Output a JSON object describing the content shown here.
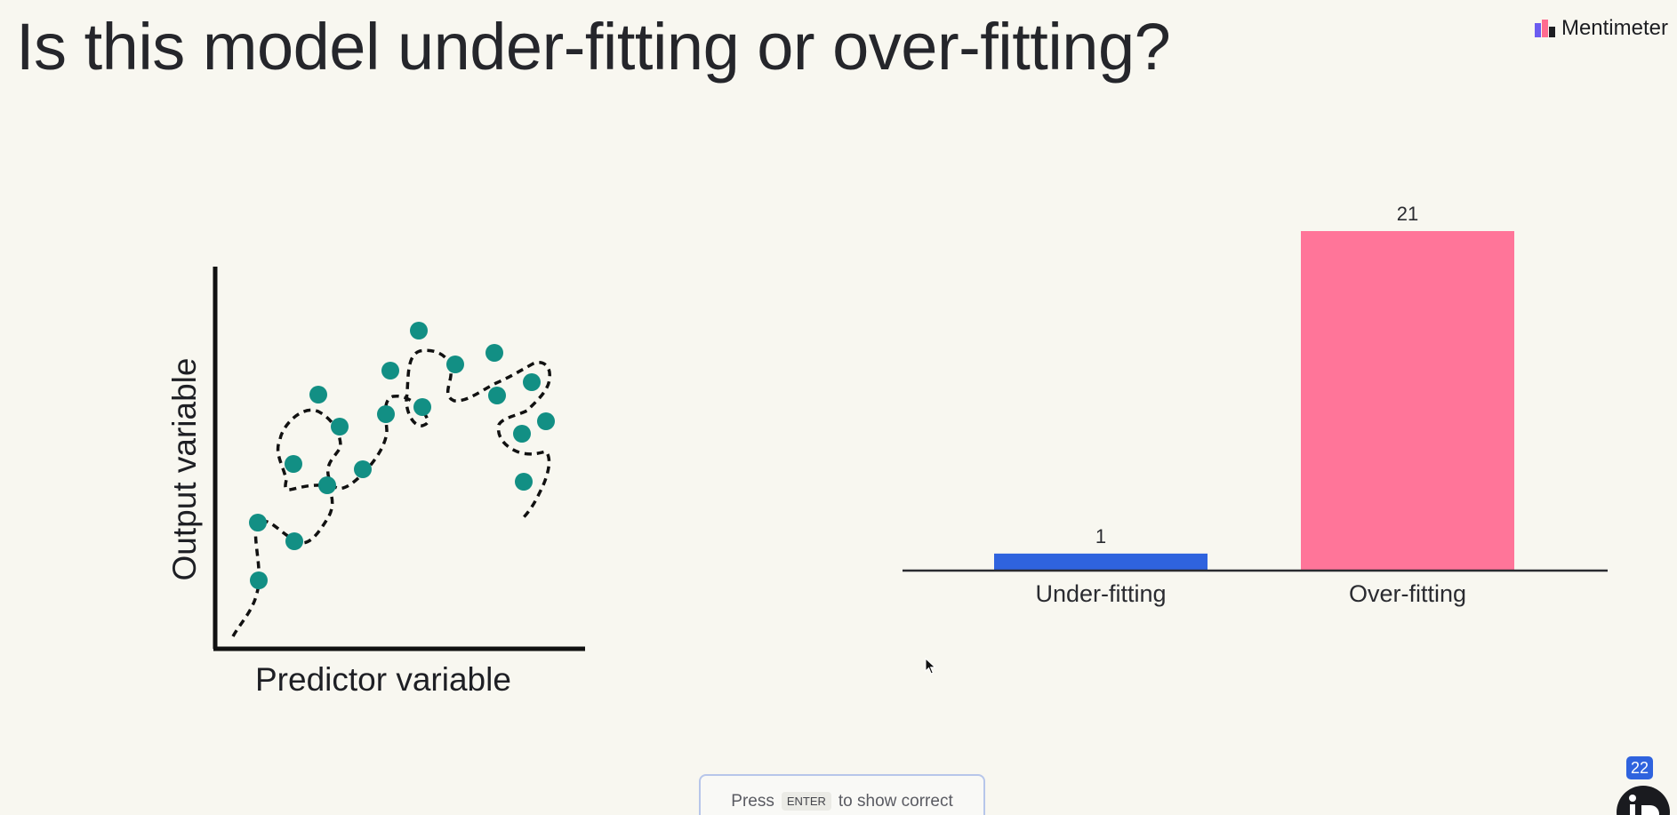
{
  "title": "Is this model under-fitting or over-fitting?",
  "brand": {
    "name": "Mentimeter",
    "icon": "mentimeter-logo"
  },
  "illustration": {
    "xlabel": "Predictor variable",
    "ylabel": "Output variable",
    "point_color": "#128f84"
  },
  "chart_data": {
    "type": "bar",
    "categories": [
      "Under-fitting",
      "Over-fitting"
    ],
    "values": [
      1,
      21
    ],
    "colors": [
      "#2f63de",
      "#ff7599"
    ],
    "ylim": [
      0,
      21
    ],
    "grid": false,
    "legend": "none"
  },
  "hint": {
    "prefix": "Press",
    "key": "ENTER",
    "suffix": "to show correct"
  },
  "participants_badge": "22",
  "icons": {
    "cursor": "mouse-pointer-icon",
    "corner": "presenter-avatar-icon"
  }
}
